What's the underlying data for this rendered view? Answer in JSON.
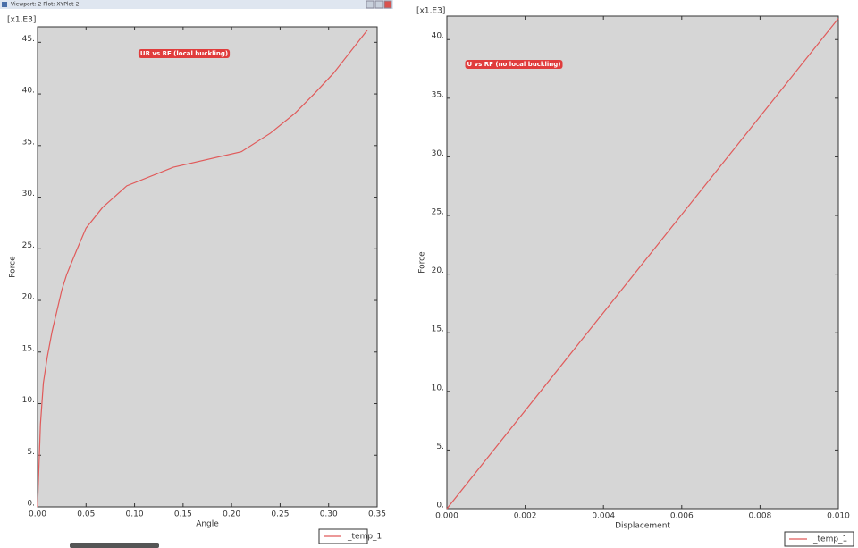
{
  "window": {
    "title": "Viewport: 2   Plot: XYPlot-2"
  },
  "chart_data": [
    {
      "type": "line",
      "annotation": "UR vs RF (local buckling)",
      "multiplier": "[x1.E3]",
      "xlabel": "Angle",
      "ylabel": "Force",
      "x": [
        0,
        0.003,
        0.006,
        0.01,
        0.015,
        0.02,
        0.025,
        0.03,
        0.04,
        0.05,
        0.067,
        0.092,
        0.14,
        0.21,
        0.24,
        0.265,
        0.285,
        0.305,
        0.34
      ],
      "series": [
        {
          "name": "_temp_1",
          "color": "#e05a5a",
          "values": [
            0,
            8,
            12,
            14.5,
            17,
            19,
            21,
            22.5,
            24.8,
            27,
            29,
            31.1,
            32.9,
            34.4,
            36.2,
            38.1,
            40,
            42,
            46.2
          ]
        }
      ],
      "xlim": [
        0,
        0.35
      ],
      "ylim": [
        0,
        46.5
      ],
      "xticks": [
        {
          "value": 0,
          "label": "0.00"
        },
        {
          "value": 0.05,
          "label": "0.05"
        },
        {
          "value": 0.1,
          "label": "0.10"
        },
        {
          "value": 0.15,
          "label": "0.15"
        },
        {
          "value": 0.2,
          "label": "0.20"
        },
        {
          "value": 0.25,
          "label": "0.25"
        },
        {
          "value": 0.3,
          "label": "0.30"
        },
        {
          "value": 0.35,
          "label": "0.35"
        }
      ],
      "yticks": [
        {
          "value": 0,
          "label": "0."
        },
        {
          "value": 5,
          "label": "5."
        },
        {
          "value": 10,
          "label": "10."
        },
        {
          "value": 15,
          "label": "15."
        },
        {
          "value": 20,
          "label": "20."
        },
        {
          "value": 25,
          "label": "25."
        },
        {
          "value": 30,
          "label": "30."
        },
        {
          "value": 35,
          "label": "35."
        },
        {
          "value": 40,
          "label": "40."
        },
        {
          "value": 45,
          "label": "45."
        }
      ]
    },
    {
      "type": "line",
      "annotation": "U vs RF (no local buckling)",
      "multiplier": "[x1.E3]",
      "xlabel": "Displacement",
      "ylabel": "Force",
      "x": [
        0,
        0.01
      ],
      "series": [
        {
          "name": "_temp_1",
          "color": "#e05a5a",
          "values": [
            0,
            41.8
          ]
        }
      ],
      "xlim": [
        0,
        0.01
      ],
      "ylim": [
        0,
        42
      ],
      "xticks": [
        {
          "value": 0,
          "label": "0.000"
        },
        {
          "value": 0.002,
          "label": "0.002"
        },
        {
          "value": 0.004,
          "label": "0.004"
        },
        {
          "value": 0.006,
          "label": "0.006"
        },
        {
          "value": 0.008,
          "label": "0.008"
        },
        {
          "value": 0.01,
          "label": "0.010"
        }
      ],
      "yticks": [
        {
          "value": 0,
          "label": "0."
        },
        {
          "value": 5,
          "label": "5."
        },
        {
          "value": 10,
          "label": "10."
        },
        {
          "value": 15,
          "label": "15."
        },
        {
          "value": 20,
          "label": "20."
        },
        {
          "value": 25,
          "label": "25."
        },
        {
          "value": 30,
          "label": "30."
        },
        {
          "value": 35,
          "label": "35."
        },
        {
          "value": 40,
          "label": "40."
        }
      ]
    }
  ]
}
